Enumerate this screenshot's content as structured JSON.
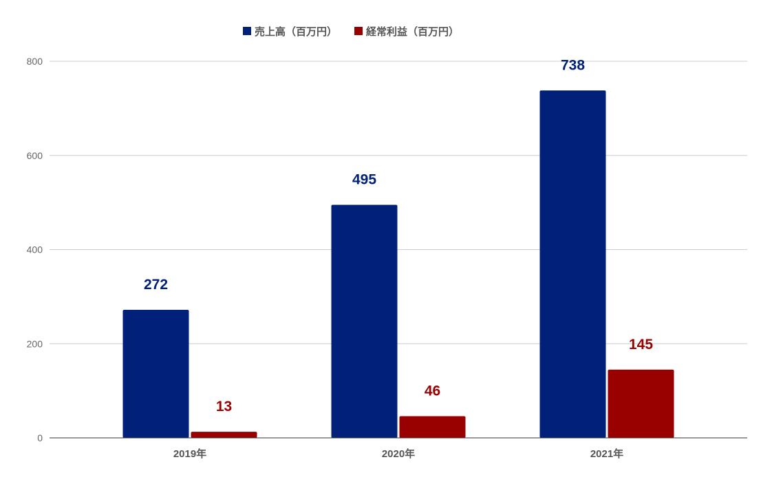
{
  "chart_data": {
    "type": "bar",
    "categories": [
      "2019年",
      "2020年",
      "2021年"
    ],
    "series": [
      {
        "name": "売上高（百万円）",
        "values": [
          272,
          495,
          738
        ],
        "color": "#002079"
      },
      {
        "name": "経常利益（百万円）",
        "values": [
          13,
          46,
          145
        ],
        "color": "#990000"
      }
    ],
    "ylim": [
      0,
      800
    ],
    "yticks": [
      0,
      200,
      400,
      600,
      800
    ],
    "grid": true,
    "legend_position": "top",
    "data_labels": true,
    "gridline_color": "#cccccc",
    "baseline_color": "#333333"
  }
}
